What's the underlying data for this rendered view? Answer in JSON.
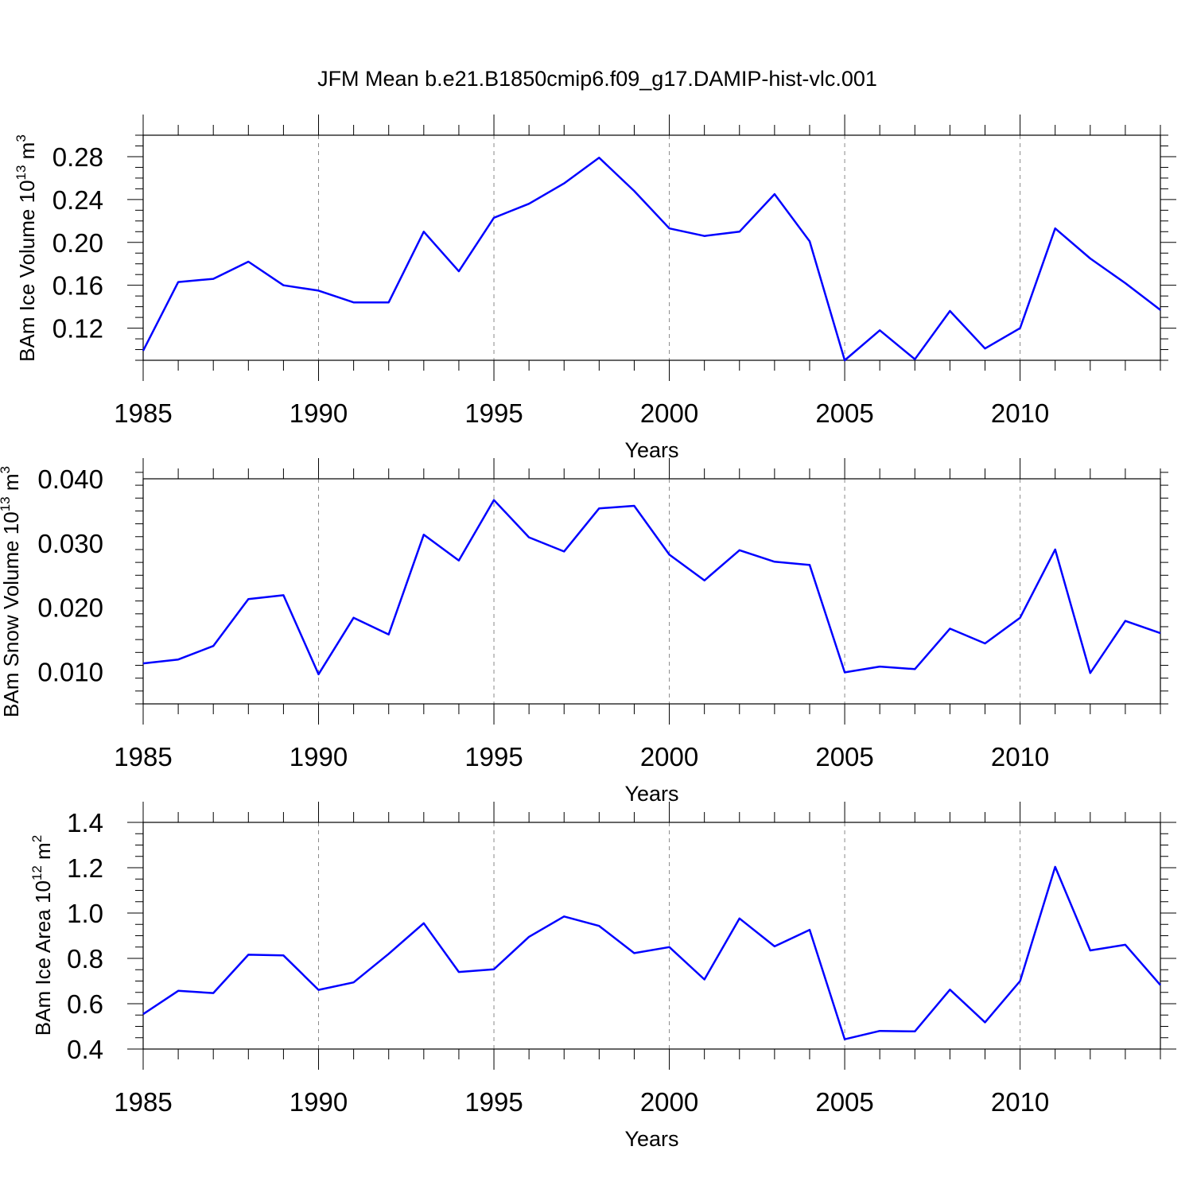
{
  "title": "JFM Mean b.e21.B1850cmip6.f09_g17.DAMIP-hist-vlc.001",
  "chart_data": [
    {
      "type": "line",
      "name": "ice-volume",
      "xlabel": "Years",
      "ylabel": {
        "prefix": "BAm Ice Volume 10",
        "exp": "13",
        "unit": " m",
        "unit_exp": "3"
      },
      "xlim": [
        1985,
        2014
      ],
      "ylim": [
        0.09,
        0.3
      ],
      "xticks": [
        1985,
        1990,
        1995,
        2000,
        2005,
        2010
      ],
      "xtick_labels": [
        "1985",
        "1990",
        "1995",
        "2000",
        "2005",
        "2010"
      ],
      "yticks": [
        0.12,
        0.16,
        0.2,
        0.24,
        0.28
      ],
      "ytick_labels": [
        "0.12",
        "0.16",
        "0.20",
        "0.24",
        "0.28"
      ],
      "yminor_step": 0.01,
      "grid_x": true,
      "color": "#0000ff",
      "x": [
        1985,
        1986,
        1987,
        1988,
        1989,
        1990,
        1991,
        1992,
        1993,
        1994,
        1995,
        1996,
        1997,
        1998,
        1999,
        2000,
        2001,
        2002,
        2003,
        2004,
        2005,
        2006,
        2007,
        2008,
        2009,
        2010,
        2011,
        2012,
        2013,
        2014
      ],
      "values": [
        0.099,
        0.163,
        0.166,
        0.182,
        0.16,
        0.155,
        0.144,
        0.144,
        0.21,
        0.173,
        0.223,
        0.236,
        0.255,
        0.279,
        0.248,
        0.213,
        0.206,
        0.21,
        0.245,
        0.201,
        0.09,
        0.118,
        0.091,
        0.136,
        0.101,
        0.12,
        0.213,
        0.185,
        0.162,
        0.137
      ]
    },
    {
      "type": "line",
      "name": "snow-volume",
      "xlabel": "Years",
      "ylabel": {
        "prefix": "BAm Snow Volume 10",
        "exp": "13",
        "unit": " m",
        "unit_exp": "3"
      },
      "xlim": [
        1985,
        2014
      ],
      "ylim": [
        0.005,
        0.04
      ],
      "xticks": [
        1985,
        1990,
        1995,
        2000,
        2005,
        2010
      ],
      "xtick_labels": [
        "1985",
        "1990",
        "1995",
        "2000",
        "2005",
        "2010"
      ],
      "yticks": [
        0.01,
        0.02,
        0.03,
        0.04
      ],
      "ytick_labels": [
        "0.010",
        "0.020",
        "0.030",
        "0.040"
      ],
      "yminor_step": 0.002,
      "grid_x": true,
      "color": "#0000ff",
      "x": [
        1985,
        1986,
        1987,
        1988,
        1989,
        1990,
        1991,
        1992,
        1993,
        1994,
        1995,
        1996,
        1997,
        1998,
        1999,
        2000,
        2001,
        2002,
        2003,
        2004,
        2005,
        2006,
        2007,
        2008,
        2009,
        2010,
        2011,
        2012,
        2013,
        2014
      ],
      "values": [
        0.0113,
        0.0119,
        0.014,
        0.0213,
        0.0219,
        0.0096,
        0.0184,
        0.0158,
        0.0313,
        0.0273,
        0.0367,
        0.0309,
        0.0287,
        0.0354,
        0.0358,
        0.0282,
        0.0242,
        0.0289,
        0.0271,
        0.0266,
        0.0099,
        0.0108,
        0.0104,
        0.0167,
        0.0144,
        0.0184,
        0.029,
        0.0098,
        0.0179,
        0.016
      ]
    },
    {
      "type": "line",
      "name": "ice-area",
      "xlabel": "Years",
      "ylabel": {
        "prefix": "BAm Ice Area 10",
        "exp": "12",
        "unit": " m",
        "unit_exp": "2"
      },
      "xlim": [
        1985,
        2014
      ],
      "ylim": [
        0.4,
        1.4
      ],
      "xticks": [
        1985,
        1990,
        1995,
        2000,
        2005,
        2010
      ],
      "xtick_labels": [
        "1985",
        "1990",
        "1995",
        "2000",
        "2005",
        "2010"
      ],
      "yticks": [
        0.4,
        0.6,
        0.8,
        1.0,
        1.2,
        1.4
      ],
      "ytick_labels": [
        "0.4",
        "0.6",
        "0.8",
        "1.0",
        "1.2",
        "1.4"
      ],
      "yminor_step": 0.05,
      "grid_x": true,
      "color": "#0000ff",
      "x": [
        1985,
        1986,
        1987,
        1988,
        1989,
        1990,
        1991,
        1992,
        1993,
        1994,
        1995,
        1996,
        1997,
        1998,
        1999,
        2000,
        2001,
        2002,
        2003,
        2004,
        2005,
        2006,
        2007,
        2008,
        2009,
        2010,
        2011,
        2012,
        2013,
        2014
      ],
      "values": [
        0.554,
        0.657,
        0.647,
        0.816,
        0.813,
        0.661,
        0.694,
        0.82,
        0.955,
        0.74,
        0.752,
        0.895,
        0.985,
        0.943,
        0.823,
        0.85,
        0.707,
        0.976,
        0.853,
        0.926,
        0.443,
        0.48,
        0.478,
        0.662,
        0.518,
        0.7,
        1.204,
        0.835,
        0.86,
        0.682
      ]
    }
  ]
}
